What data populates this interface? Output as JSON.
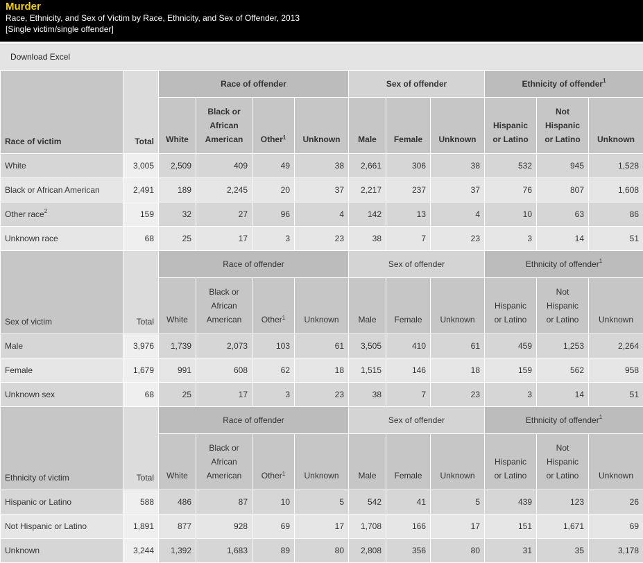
{
  "header": {
    "title": "Murder",
    "subtitle": "Race, Ethnicity, and Sex of Victim by Race, Ethnicity, and Sex of Offender, 2013",
    "note": "[Single victim/single offender]"
  },
  "download_label": "Download Excel",
  "groups": {
    "race": "Race of offender",
    "sex": "Sex of offender",
    "ethnicity": "Ethnicity of offender",
    "ethnicity_sup": "1"
  },
  "cols": {
    "total": "Total",
    "white": "White",
    "black_l1": "Black or",
    "black_l2": "African",
    "black_l3": "American",
    "other": "Other",
    "other_sup": "1",
    "unknown": "Unknown",
    "male": "Male",
    "female": "Female",
    "hisp_l1": "Hispanic",
    "hisp_l2": "or Latino",
    "not_l1": "Not",
    "not_l2": "Hispanic",
    "not_l3": "or Latino"
  },
  "sections": [
    {
      "label": "Race of victim",
      "rows": [
        {
          "label": "White",
          "sup": "",
          "values": [
            "3,005",
            "2,509",
            "409",
            "49",
            "38",
            "2,661",
            "306",
            "38",
            "532",
            "945",
            "1,528"
          ]
        },
        {
          "label": "Black or African American",
          "sup": "",
          "values": [
            "2,491",
            "189",
            "2,245",
            "20",
            "37",
            "2,217",
            "237",
            "37",
            "76",
            "807",
            "1,608"
          ]
        },
        {
          "label": "Other race",
          "sup": "2",
          "values": [
            "159",
            "32",
            "27",
            "96",
            "4",
            "142",
            "13",
            "4",
            "10",
            "63",
            "86"
          ]
        },
        {
          "label": "Unknown race",
          "sup": "",
          "values": [
            "68",
            "25",
            "17",
            "3",
            "23",
            "38",
            "7",
            "23",
            "3",
            "14",
            "51"
          ]
        }
      ]
    },
    {
      "label": "Sex of victim",
      "rows": [
        {
          "label": "Male",
          "sup": "",
          "values": [
            "3,976",
            "1,739",
            "2,073",
            "103",
            "61",
            "3,505",
            "410",
            "61",
            "459",
            "1,253",
            "2,264"
          ]
        },
        {
          "label": "Female",
          "sup": "",
          "values": [
            "1,679",
            "991",
            "608",
            "62",
            "18",
            "1,515",
            "146",
            "18",
            "159",
            "562",
            "958"
          ]
        },
        {
          "label": "Unknown sex",
          "sup": "",
          "values": [
            "68",
            "25",
            "17",
            "3",
            "23",
            "38",
            "7",
            "23",
            "3",
            "14",
            "51"
          ]
        }
      ]
    },
    {
      "label": "Ethnicity of victim",
      "rows": [
        {
          "label": "Hispanic or Latino",
          "sup": "",
          "values": [
            "588",
            "486",
            "87",
            "10",
            "5",
            "542",
            "41",
            "5",
            "439",
            "123",
            "26"
          ]
        },
        {
          "label": "Not Hispanic or Latino",
          "sup": "",
          "values": [
            "1,891",
            "877",
            "928",
            "69",
            "17",
            "1,708",
            "166",
            "17",
            "151",
            "1,671",
            "69"
          ]
        },
        {
          "label": "Unknown",
          "sup": "",
          "values": [
            "3,244",
            "1,392",
            "1,683",
            "89",
            "80",
            "2,808",
            "356",
            "80",
            "31",
            "35",
            "3,178"
          ]
        }
      ]
    }
  ]
}
